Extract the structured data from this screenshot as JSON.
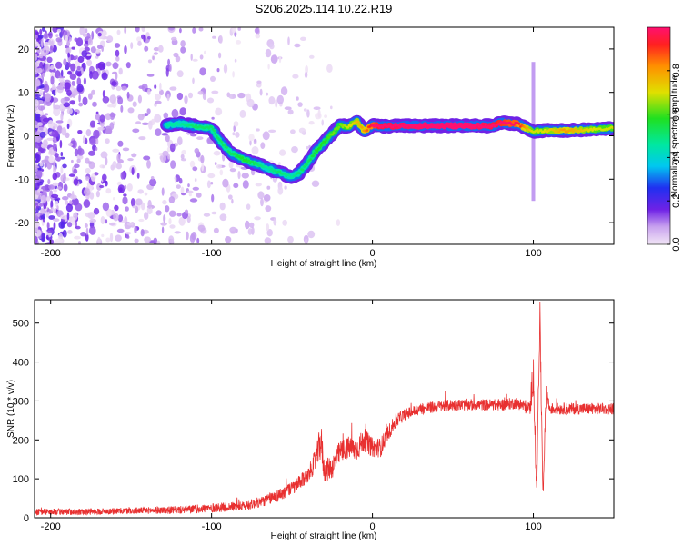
{
  "figure": {
    "title": "S206.2025.114.10.22.R19"
  },
  "chart_data": [
    {
      "type": "heatmap",
      "xlabel": "Height of straight line (km)",
      "ylabel": "Frequency (Hz)",
      "xlim": [
        -210,
        150
      ],
      "ylim": [
        -25,
        25
      ],
      "x_ticks": [
        -200,
        -100,
        0,
        100
      ],
      "x_tick_labels": [
        "-200",
        "-100",
        "0",
        "100"
      ],
      "y_ticks": [
        -20,
        -10,
        0,
        10,
        20
      ],
      "y_tick_labels": [
        "-20",
        "-10",
        "0",
        "10",
        "20"
      ],
      "colorbar": {
        "label": "Normalized spectral amplitude",
        "range": [
          0,
          1
        ],
        "ticks": [
          0.0,
          0.2,
          0.4,
          0.6,
          0.8
        ],
        "tick_labels": [
          "0.0",
          "0.2",
          "0.4",
          "0.6",
          "0.8"
        ]
      },
      "ridge": {
        "x": [
          -128,
          -120,
          -110,
          -100,
          -95,
          -88,
          -80,
          -72,
          -65,
          -58,
          -50,
          -45,
          -40,
          -35,
          -30,
          -25,
          -20,
          -15,
          -10,
          -5,
          0,
          5,
          20,
          40,
          60,
          75,
          80,
          90,
          95,
          100,
          105,
          120,
          140,
          150
        ],
        "frequency": [
          2.5,
          2.8,
          2.2,
          1.8,
          -1,
          -4,
          -5.5,
          -6.5,
          -7.5,
          -8.5,
          -9.5,
          -8.5,
          -6,
          -3.5,
          -1.5,
          0.5,
          2.5,
          2,
          3.5,
          1,
          2.5,
          2.2,
          2.3,
          2.3,
          2.3,
          2.3,
          3.0,
          2.8,
          1.8,
          1.0,
          1.2,
          1.2,
          1.5,
          1.8
        ],
        "amplitude": [
          0.4,
          0.4,
          0.45,
          0.45,
          0.45,
          0.45,
          0.5,
          0.45,
          0.4,
          0.45,
          0.4,
          0.45,
          0.45,
          0.5,
          0.5,
          0.55,
          0.55,
          0.6,
          0.65,
          0.7,
          0.85,
          0.95,
          0.98,
          1.0,
          1.0,
          0.95,
          0.9,
          0.85,
          0.7,
          0.6,
          0.6,
          0.7,
          0.6,
          0.6
        ]
      },
      "spike": {
        "x": 100,
        "frequency_range": [
          -15,
          17
        ],
        "amplitude": 0.1
      }
    },
    {
      "type": "line",
      "xlabel": "Height of straight line (km)",
      "ylabel": "SNR (10 * v/v)",
      "xlim": [
        -210,
        150
      ],
      "ylim": [
        0,
        560
      ],
      "x_ticks": [
        -200,
        -100,
        0,
        100
      ],
      "x_tick_labels": [
        "-200",
        "-100",
        "0",
        "100"
      ],
      "y_ticks": [
        0,
        100,
        200,
        300,
        400,
        500
      ],
      "y_tick_labels": [
        "0",
        "100",
        "200",
        "300",
        "400",
        "500"
      ],
      "series": [
        {
          "color": "#e83030",
          "x": [
            -210,
            -180,
            -150,
            -120,
            -100,
            -80,
            -70,
            -60,
            -50,
            -45,
            -40,
            -35,
            -32,
            -30,
            -25,
            -20,
            -15,
            -10,
            -5,
            0,
            5,
            10,
            15,
            20,
            30,
            40,
            50,
            60,
            70,
            80,
            90,
            98,
            100,
            102,
            104,
            106,
            108,
            110,
            120,
            130,
            140,
            150
          ],
          "y": [
            15,
            15,
            18,
            20,
            25,
            30,
            40,
            55,
            75,
            90,
            110,
            150,
            200,
            120,
            130,
            170,
            180,
            175,
            200,
            180,
            180,
            220,
            250,
            265,
            280,
            285,
            290,
            290,
            290,
            290,
            295,
            280,
            380,
            60,
            520,
            60,
            330,
            280,
            280,
            280,
            280,
            280
          ],
          "noise": [
            8,
            8,
            8,
            10,
            12,
            12,
            14,
            16,
            18,
            20,
            20,
            30,
            50,
            30,
            30,
            30,
            30,
            30,
            30,
            25,
            25,
            20,
            18,
            15,
            15,
            15,
            15,
            15,
            15,
            15,
            15,
            20,
            60,
            20,
            60,
            20,
            25,
            15,
            15,
            15,
            15,
            15
          ]
        }
      ]
    }
  ]
}
